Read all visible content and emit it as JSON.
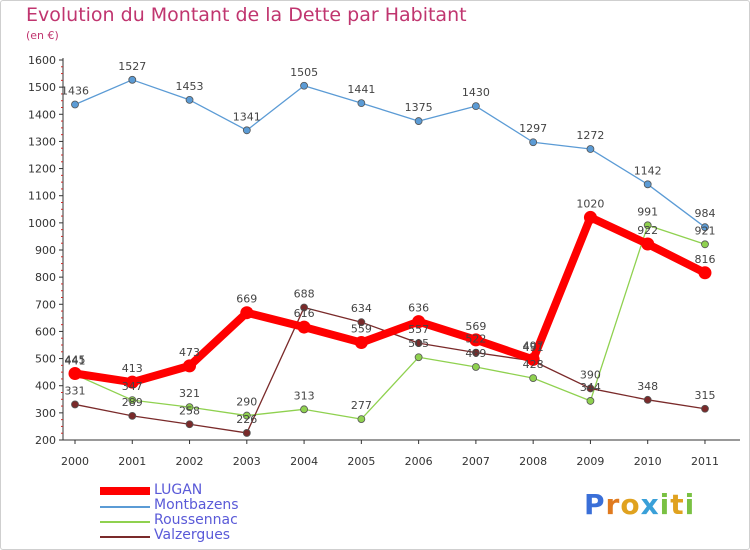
{
  "header": {
    "title": "Evolution du Montant de la Dette par Habitant",
    "subtitle": "(en €)"
  },
  "logo": {
    "text": "Proxiti"
  },
  "chart_data": {
    "type": "line",
    "title": "Evolution du Montant de la Dette par Habitant",
    "subtitle": "(en €)",
    "x": [
      "2000",
      "2001",
      "2002",
      "2003",
      "2004",
      "2005",
      "2006",
      "2007",
      "2008",
      "2009",
      "2010",
      "2011"
    ],
    "ylim": [
      200,
      1600
    ],
    "yticks": [
      200,
      300,
      400,
      500,
      600,
      700,
      800,
      900,
      1000,
      1100,
      1200,
      1300,
      1400,
      1500,
      1600
    ],
    "grid": false,
    "legend_position": "bottom-left",
    "series": [
      {
        "name": "LUGAN",
        "color": "#ff0000",
        "values": [
          445,
          413,
          473,
          669,
          616,
          559,
          636,
          569,
          497,
          1020,
          922,
          816
        ],
        "labels": [
          "445",
          "413",
          "473",
          "669",
          "616",
          "559",
          "636",
          "569",
          "497",
          "1020",
          "922",
          "816"
        ]
      },
      {
        "name": "Montbazens",
        "color": "#5b9bd5",
        "values": [
          1436,
          1527,
          1453,
          1341,
          1505,
          1441,
          1375,
          1430,
          1297,
          1272,
          1142,
          984
        ],
        "labels": [
          "1436",
          "1527",
          "1453",
          "1341",
          "1505",
          "1441",
          "1375",
          "1430",
          "1297",
          "1272",
          "1142",
          "984"
        ]
      },
      {
        "name": "Roussennac",
        "color": "#8fd14f",
        "values": [
          441,
          347,
          321,
          290,
          313,
          277,
          505,
          469,
          428,
          344,
          991,
          921
        ],
        "labels": [
          "441",
          "347",
          "321",
          "290",
          "313",
          "277",
          "505",
          "469",
          "428",
          "344",
          "991",
          "921"
        ]
      },
      {
        "name": "Valzergues",
        "color": "#7a2a2a",
        "values": [
          331,
          289,
          258,
          226,
          688,
          634,
          557,
          522,
          491,
          390,
          348,
          315
        ],
        "labels": [
          "331",
          "289",
          "258",
          "226",
          "688",
          "634",
          "557",
          "522",
          "491",
          "390",
          "348",
          "315"
        ]
      }
    ]
  }
}
